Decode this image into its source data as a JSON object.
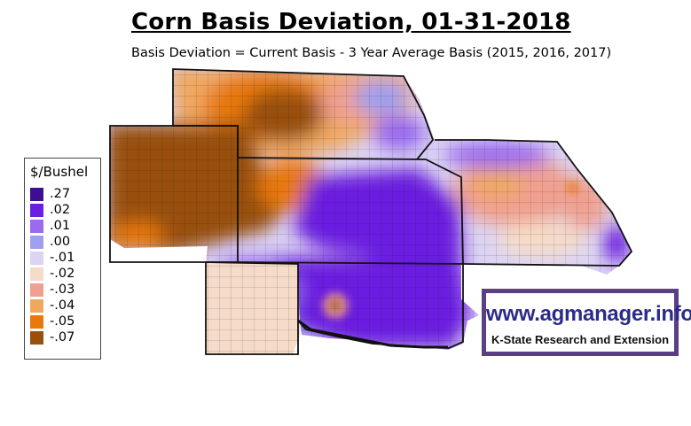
{
  "title": "Corn Basis Deviation, 01-31-2018",
  "subtitle": "Basis Deviation = Current Basis - 3 Year Average Basis (2015, 2016, 2017)",
  "legend": {
    "title": "$/Bushel",
    "items": [
      {
        "label": ".27",
        "color": "#3b0f8f"
      },
      {
        "label": ".02",
        "color": "#6a1fe0"
      },
      {
        "label": ".01",
        "color": "#9a6af0"
      },
      {
        "label": ".00",
        "color": "#9f9ff0"
      },
      {
        "label": "-.01",
        "color": "#dcd4f4"
      },
      {
        "label": "-.02",
        "color": "#f6dcc8"
      },
      {
        "label": "-.03",
        "color": "#f0a090"
      },
      {
        "label": "-.04",
        "color": "#f0a860"
      },
      {
        "label": "-.05",
        "color": "#e8780c"
      },
      {
        "label": "-.07",
        "color": "#98500c"
      }
    ]
  },
  "promo": {
    "url": "www.agmanager.info",
    "tagline": "K-State Research and Extension",
    "border_color": "#5a3f86"
  }
}
